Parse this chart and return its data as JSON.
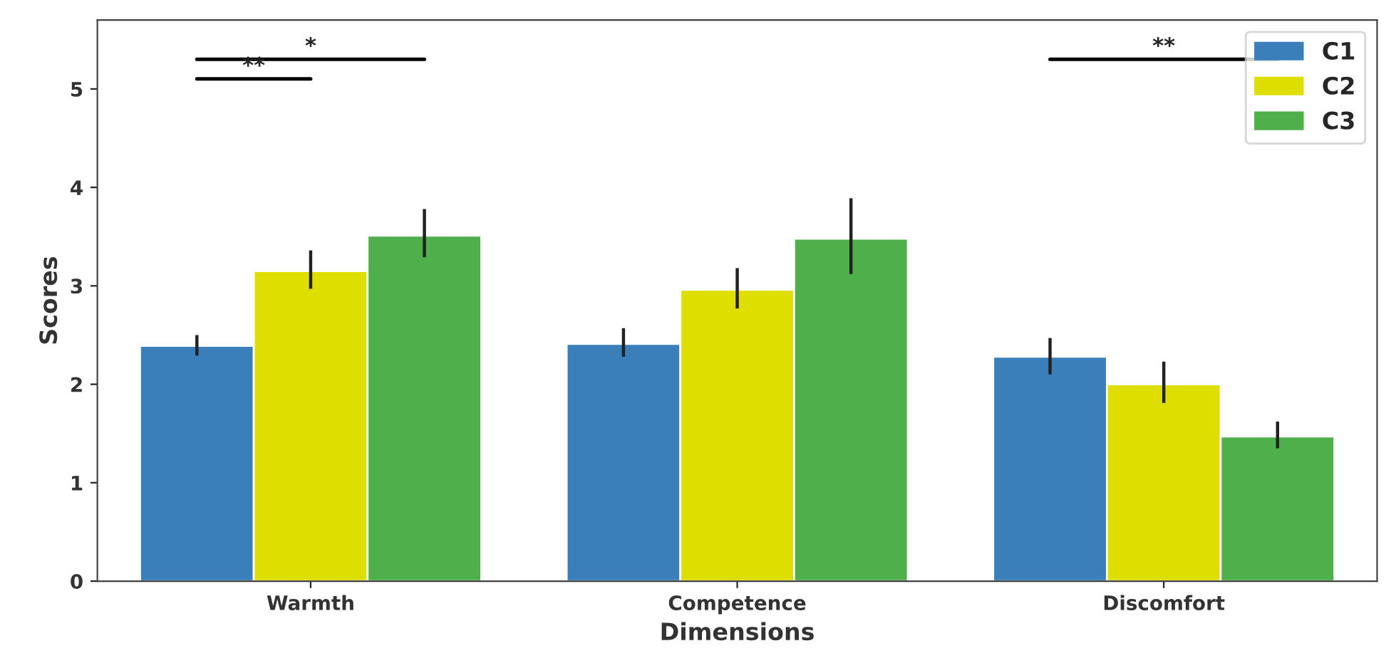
{
  "chart_data": {
    "type": "bar",
    "xlabel": "Dimensions",
    "ylabel": "Scores",
    "categories": [
      "Warmth",
      "Competence",
      "Discomfort"
    ],
    "series": [
      {
        "name": "C1",
        "color": "#3a7fba",
        "values": [
          2.39,
          2.41,
          2.28
        ],
        "errors": [
          [
            2.29,
            2.5
          ],
          [
            2.28,
            2.57
          ],
          [
            2.1,
            2.47
          ]
        ]
      },
      {
        "name": "C2",
        "color": "#dedf00",
        "values": [
          3.15,
          2.96,
          2.0
        ],
        "errors": [
          [
            2.97,
            3.36
          ],
          [
            2.77,
            3.18
          ],
          [
            1.81,
            2.23
          ]
        ]
      },
      {
        "name": "C3",
        "color": "#4faf4a",
        "values": [
          3.51,
          3.48,
          1.47
        ],
        "errors": [
          [
            3.29,
            3.78
          ],
          [
            3.12,
            3.89
          ],
          [
            1.35,
            1.62
          ]
        ]
      }
    ],
    "ylim": [
      0,
      5.7
    ],
    "yticks": [
      0,
      1,
      2,
      3,
      4,
      5
    ],
    "grid": false,
    "legend": "top right",
    "annotations": [
      "**",
      "*",
      "**"
    ]
  }
}
